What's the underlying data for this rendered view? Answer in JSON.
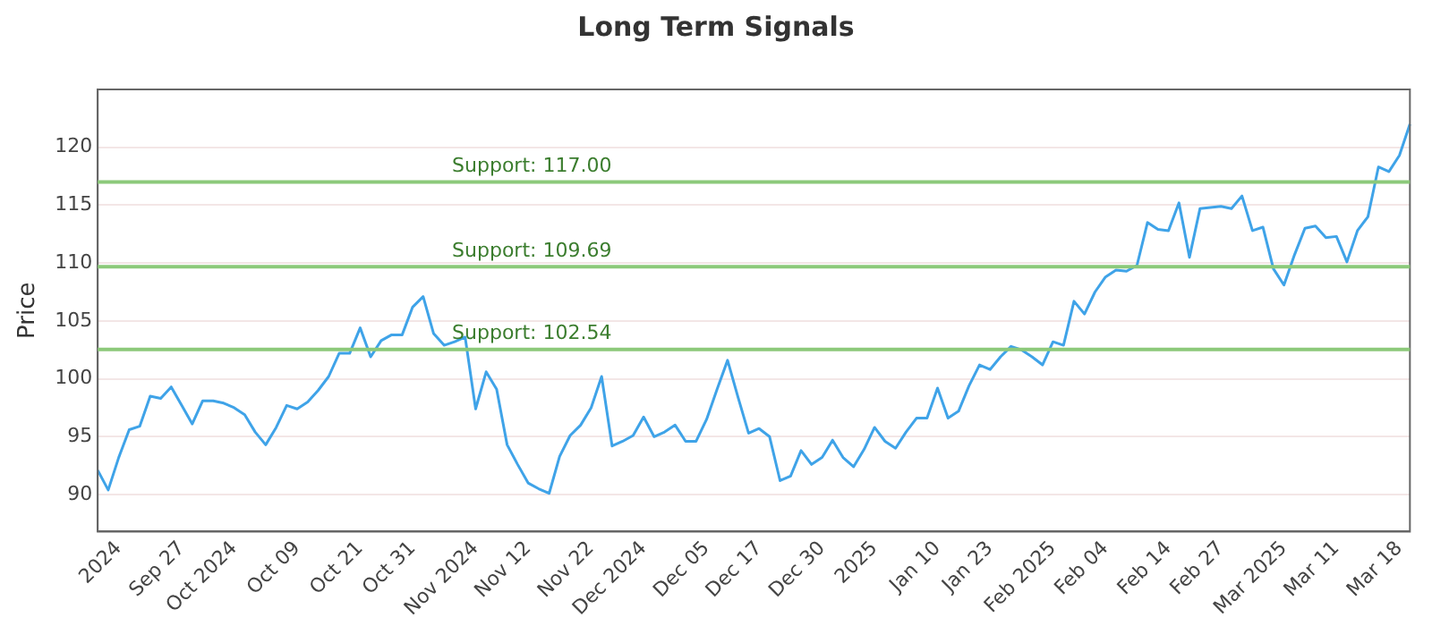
{
  "chart_data": {
    "type": "line",
    "title": "Long Term Signals",
    "ylabel": "Price",
    "categories": [
      null,
      null,
      "2024",
      null,
      null,
      null,
      null,
      null,
      "Sep 27",
      null,
      null,
      null,
      null,
      "Oct 2024",
      null,
      null,
      null,
      null,
      null,
      "Oct 09",
      null,
      null,
      null,
      null,
      null,
      "Oct 21",
      null,
      null,
      null,
      null,
      "Oct 31",
      null,
      null,
      null,
      null,
      null,
      "Nov 2024",
      null,
      null,
      null,
      null,
      "Nov 12",
      null,
      null,
      null,
      null,
      null,
      "Nov 22",
      null,
      null,
      null,
      null,
      "Dec 2024",
      null,
      null,
      null,
      null,
      null,
      "Dec 05",
      null,
      null,
      null,
      null,
      "Dec 17",
      null,
      null,
      null,
      null,
      null,
      "Dec 30",
      null,
      null,
      null,
      null,
      "2025",
      null,
      null,
      null,
      null,
      null,
      "Jan 10",
      null,
      null,
      null,
      null,
      "Jan 23",
      null,
      null,
      null,
      null,
      null,
      "Feb 2025",
      null,
      null,
      null,
      null,
      "Feb 04",
      null,
      null,
      null,
      null,
      null,
      "Feb 14",
      null,
      null,
      null,
      null,
      "Feb 27",
      null,
      null,
      null,
      null,
      null,
      "Mar 2025",
      null,
      null,
      null,
      null,
      "Mar 11",
      null,
      null,
      null,
      null,
      null,
      "Mar 18",
      null
    ],
    "series": [
      {
        "color": "#3fa3e8",
        "values": [
          92.1,
          90.4,
          93.2,
          95.6,
          95.9,
          98.5,
          98.3,
          99.3,
          97.7,
          96.1,
          98.1,
          98.1,
          97.9,
          97.5,
          96.9,
          95.4,
          94.3,
          95.8,
          97.7,
          97.4,
          98.0,
          99.0,
          100.2,
          102.2,
          102.2,
          104.4,
          101.9,
          103.3,
          103.8,
          103.8,
          106.2,
          107.1,
          103.9,
          102.9,
          103.2,
          103.6,
          97.4,
          100.6,
          99.1,
          94.3,
          92.6,
          91.0,
          90.5,
          90.1,
          93.3,
          95.1,
          96.0,
          97.5,
          100.2,
          94.2,
          94.6,
          95.1,
          96.7,
          95.0,
          95.4,
          96.0,
          94.6,
          94.6,
          96.5,
          99.1,
          101.6,
          98.4,
          95.3,
          95.7,
          95.0,
          91.2,
          91.6,
          93.8,
          92.6,
          93.2,
          94.7,
          93.2,
          92.4,
          93.9,
          95.8,
          94.6,
          94.0,
          95.4,
          96.6,
          96.6,
          99.2,
          96.6,
          97.2,
          99.4,
          101.2,
          100.8,
          101.9,
          102.8,
          102.5,
          101.9,
          101.2,
          103.2,
          102.9,
          106.7,
          105.6,
          107.5,
          108.8,
          109.4,
          109.3,
          109.8,
          113.5,
          112.9,
          112.8,
          115.2,
          110.5,
          114.7,
          114.8,
          114.9,
          114.7,
          115.8,
          112.8,
          113.1,
          109.5,
          108.1,
          110.7,
          113.0,
          113.2,
          112.2,
          112.3,
          110.1,
          112.8,
          114.0,
          118.3,
          117.9,
          119.3,
          122.0
        ]
      }
    ],
    "ylim": [
      86.8,
      125
    ],
    "yticks": [
      90,
      95,
      100,
      105,
      110,
      115,
      120
    ],
    "grid": "y",
    "legend": false,
    "marker": "none",
    "line_style": "solid",
    "ref_lines": [
      {
        "axis": "y",
        "value": 117.0,
        "label": "Support: 117.00",
        "color": "#8cc97a"
      },
      {
        "axis": "y",
        "value": 109.69,
        "label": "Support: 109.69",
        "color": "#8cc97a"
      },
      {
        "axis": "y",
        "value": 102.54,
        "label": "Support: 102.54",
        "color": "#8cc97a"
      }
    ]
  }
}
